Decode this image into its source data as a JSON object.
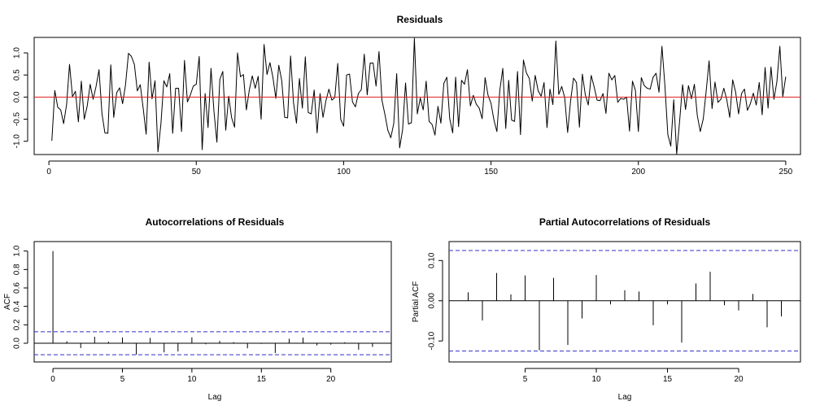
{
  "chart_data": [
    {
      "type": "line",
      "title": "Residuals",
      "xlabel": "",
      "ylabel": "",
      "xlim": [
        -5,
        255
      ],
      "ylim": [
        -1.3,
        1.35
      ],
      "x_ticks": [
        0,
        50,
        100,
        150,
        200,
        250
      ],
      "y_ticks": [
        -1.0,
        -0.5,
        0.0,
        0.5,
        1.0
      ],
      "x_tick_labels": [
        "0",
        "50",
        "100",
        "150",
        "200",
        "250"
      ],
      "y_tick_labels": [
        "-1.0",
        "-0.5",
        "0.0",
        "0.5",
        "1.0"
      ],
      "reference_line": {
        "y": 0,
        "color": "#e0201b"
      },
      "series": [
        {
          "color": "#000000",
          "values": [
            -0.99,
            0.15,
            -0.23,
            -0.29,
            -0.6,
            -0.17,
            0.74,
            0.01,
            0.13,
            -0.56,
            0.36,
            -0.5,
            -0.2,
            0.29,
            -0.05,
            0.24,
            0.62,
            -0.37,
            -0.81,
            -0.82,
            0.73,
            -0.46,
            0.1,
            0.21,
            -0.15,
            0.28,
            0.99,
            0.92,
            0.74,
            0.14,
            0.28,
            -0.26,
            -0.84,
            0.79,
            -0.04,
            0.37,
            -1.24,
            -0.61,
            0.37,
            0.23,
            0.53,
            -0.82,
            0.2,
            0.2,
            -0.78,
            0.83,
            -0.11,
            0.05,
            0.25,
            0.29,
            0.92,
            -1.19,
            0.08,
            -0.69,
            0.65,
            -0.32,
            -1.02,
            0.4,
            0.58,
            -0.75,
            0.02,
            -0.47,
            -0.68,
            1.0,
            0.46,
            0.51,
            -0.29,
            0.16,
            0.48,
            0.2,
            0.47,
            -0.5,
            1.19,
            0.51,
            0.78,
            0.45,
            -0.03,
            0.72,
            0.37,
            -0.46,
            -0.47,
            0.93,
            -0.13,
            -0.59,
            0.42,
            -0.25,
            0.91,
            -0.35,
            -0.38,
            0.16,
            -0.81,
            0.08,
            -0.46,
            -0.08,
            0.18,
            -0.07,
            -0.01,
            0.76,
            -0.5,
            -0.66,
            0.5,
            0.52,
            -0.11,
            -0.22,
            0.08,
            0.17,
            0.97,
            0.05,
            0.77,
            0.77,
            0.25,
            1.03,
            -0.07,
            -0.39,
            -0.75,
            -0.92,
            -0.6,
            0.53,
            -1.15,
            -0.74,
            0.32,
            -0.61,
            -0.58,
            1.33,
            -0.38,
            -0.02,
            -0.29,
            0.36,
            -0.55,
            -0.62,
            -0.86,
            -0.21,
            -0.59,
            0.31,
            0.45,
            -0.49,
            -0.81,
            0.45,
            -0.67,
            0.38,
            0.29,
            0.62,
            -0.2,
            0.04,
            -0.16,
            -0.25,
            -0.49,
            0.44,
            0.04,
            -0.14,
            -0.52,
            -0.78,
            0.16,
            0.65,
            -0.71,
            0.38,
            -0.52,
            -0.55,
            0.58,
            -0.85,
            0.84,
            0.55,
            0.42,
            -0.09,
            0.49,
            0.14,
            0.02,
            0.33,
            -0.69,
            0.18,
            -0.17,
            1.27,
            0.06,
            0.24,
            -0.01,
            -0.8,
            -0.09,
            0.43,
            0.33,
            -0.68,
            0.52,
            0.05,
            -0.18,
            0.49,
            0.23,
            -0.07,
            -0.08,
            0.08,
            -0.37,
            0.54,
            0.39,
            0.49,
            -0.12,
            -0.03,
            -0.05,
            0.0,
            -0.77,
            0.36,
            0.15,
            -0.78,
            0.44,
            0.26,
            0.2,
            0.18,
            0.45,
            0.54,
            0.11,
            1.15,
            0.26,
            -0.85,
            -1.11,
            -0.06,
            -1.29,
            -0.54,
            0.28,
            -0.28,
            0.26,
            -0.04,
            0.29,
            -0.42,
            -0.78,
            -0.5,
            0.13,
            0.82,
            -0.26,
            0.34,
            -0.12,
            -0.05,
            0.2,
            -0.06,
            -0.46,
            0.39,
            0.11,
            -0.38,
            0.08,
            0.18,
            -0.3,
            -0.15,
            0.09,
            -0.18,
            0.33,
            -0.4,
            0.67,
            -0.25,
            0.68,
            -0.05,
            0.35,
            1.15,
            0.01,
            0.46
          ]
        }
      ]
    },
    {
      "type": "bar",
      "title": "Autocorrelations of Residuals",
      "xlabel": "Lag",
      "ylabel": "ACF",
      "xlim": [
        -1,
        24
      ],
      "ylim": [
        -0.15,
        1.05
      ],
      "x_ticks": [
        0,
        5,
        10,
        15,
        20
      ],
      "y_ticks": [
        0.0,
        0.2,
        0.4,
        0.6,
        0.8,
        1.0
      ],
      "x_tick_labels": [
        "0",
        "5",
        "10",
        "15",
        "20"
      ],
      "y_tick_labels": [
        "0.0",
        "0.2",
        "0.4",
        "0.6",
        "0.8",
        "1.0"
      ],
      "confidence_band": [
        -0.125,
        0.125
      ],
      "band_color": "#3030c8",
      "lags": [
        0,
        1,
        2,
        3,
        4,
        5,
        6,
        7,
        8,
        9,
        10,
        11,
        12,
        13,
        14,
        15,
        16,
        17,
        18,
        19,
        20,
        21,
        22,
        23
      ],
      "values": [
        1.0,
        0.021,
        -0.052,
        0.07,
        0.016,
        0.062,
        -0.123,
        0.058,
        -0.099,
        -0.089,
        0.064,
        -0.011,
        0.025,
        0.012,
        -0.055,
        -0.007,
        -0.105,
        0.049,
        0.061,
        -0.024,
        -0.015,
        0.01,
        -0.07,
        -0.04
      ]
    },
    {
      "type": "bar",
      "title": "Partial Autocorrelations of Residuals",
      "xlabel": "Lag",
      "ylabel": "Partial ACF",
      "xlim": [
        0,
        24
      ],
      "ylim": [
        -0.14,
        0.135
      ],
      "x_ticks": [
        5,
        10,
        15,
        20
      ],
      "y_ticks": [
        -0.1,
        0.0,
        0.1
      ],
      "x_tick_labels": [
        "5",
        "10",
        "15",
        "20"
      ],
      "y_tick_labels": [
        "-0.10",
        "0.00",
        "0.10"
      ],
      "confidence_band": [
        -0.125,
        0.125
      ],
      "band_color": "#3030c8",
      "lags": [
        1,
        2,
        3,
        4,
        5,
        6,
        7,
        8,
        9,
        10,
        11,
        12,
        13,
        14,
        15,
        16,
        17,
        18,
        19,
        20,
        21,
        22,
        23
      ],
      "values": [
        0.021,
        -0.049,
        0.069,
        0.016,
        0.063,
        -0.123,
        0.057,
        -0.11,
        -0.044,
        0.064,
        -0.009,
        0.026,
        0.023,
        -0.061,
        -0.009,
        -0.104,
        0.043,
        0.072,
        -0.011,
        -0.024,
        0.017,
        -0.066,
        -0.039
      ]
    }
  ]
}
